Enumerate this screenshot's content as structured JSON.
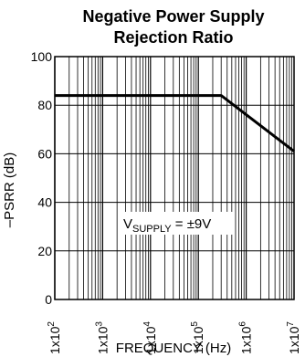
{
  "chart_data": {
    "type": "line",
    "title": "Negative Power Supply",
    "subtitle": "Rejection Ratio",
    "xlabel": "FREQUENCY (Hz)",
    "ylabel": "–PSRR (dB)",
    "x_scale": "log",
    "xlim": [
      100,
      10000000
    ],
    "ylim": [
      0,
      100
    ],
    "x_ticks": [
      {
        "value": 100,
        "base": "1x10",
        "exp": "2"
      },
      {
        "value": 1000,
        "base": "1x10",
        "exp": "3"
      },
      {
        "value": 10000,
        "base": "1x10",
        "exp": "4"
      },
      {
        "value": 100000,
        "base": "1x10",
        "exp": "5"
      },
      {
        "value": 1000000,
        "base": "1x10",
        "exp": "6"
      },
      {
        "value": 10000000,
        "base": "1x10",
        "exp": "7"
      }
    ],
    "y_ticks": [
      "0",
      "20",
      "40",
      "60",
      "80",
      "100"
    ],
    "grid": true,
    "annotation": {
      "main": "V",
      "sub": "SUPPLY",
      "rest": " = ±9V"
    },
    "series": [
      {
        "x": [
          100,
          300000,
          10000000
        ],
        "y": [
          84,
          84,
          61
        ]
      }
    ]
  }
}
